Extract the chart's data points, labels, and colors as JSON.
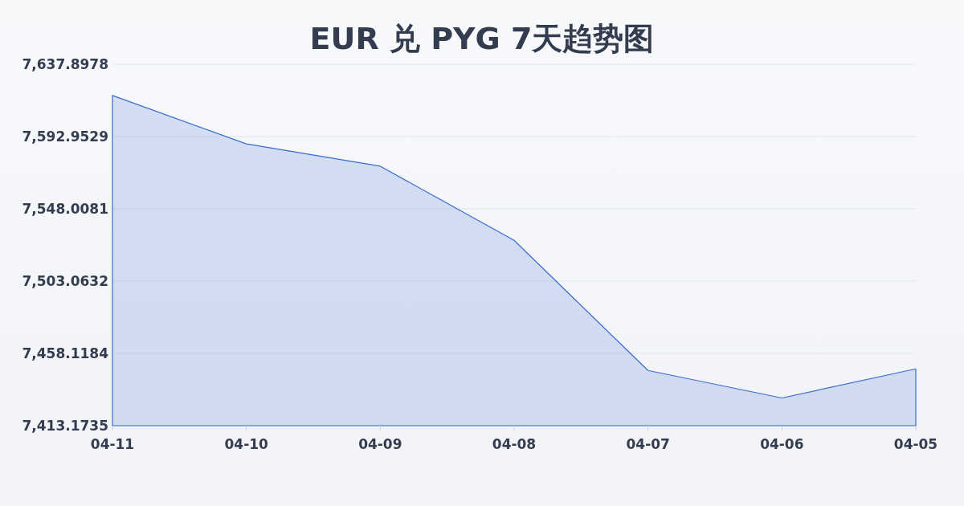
{
  "chart_data": {
    "type": "area",
    "title": "EUR 兑 PYG 7天趋势图",
    "categories": [
      "04-11",
      "04-10",
      "04-09",
      "04-08",
      "04-07",
      "04-06",
      "04-05"
    ],
    "series": [
      {
        "color": "#3a6bd0",
        "values": [
          7618.5,
          7588.4,
          7574.5,
          7528.4,
          7447.5,
          7430.4,
          7448.5
        ]
      }
    ],
    "ylim": [
      7413.1735,
      7637.8978
    ],
    "yticks": [
      {
        "value": 7413.1735,
        "label": "7,413.1735"
      },
      {
        "value": 7458.1184,
        "label": "7,458.1184"
      },
      {
        "value": 7503.0632,
        "label": "7,503.0632"
      },
      {
        "value": 7548.0081,
        "label": "7,548.0081"
      },
      {
        "value": 7592.9529,
        "label": "7,592.9529"
      },
      {
        "value": 7637.8978,
        "label": "7,637.8978"
      }
    ],
    "grid": "y"
  }
}
